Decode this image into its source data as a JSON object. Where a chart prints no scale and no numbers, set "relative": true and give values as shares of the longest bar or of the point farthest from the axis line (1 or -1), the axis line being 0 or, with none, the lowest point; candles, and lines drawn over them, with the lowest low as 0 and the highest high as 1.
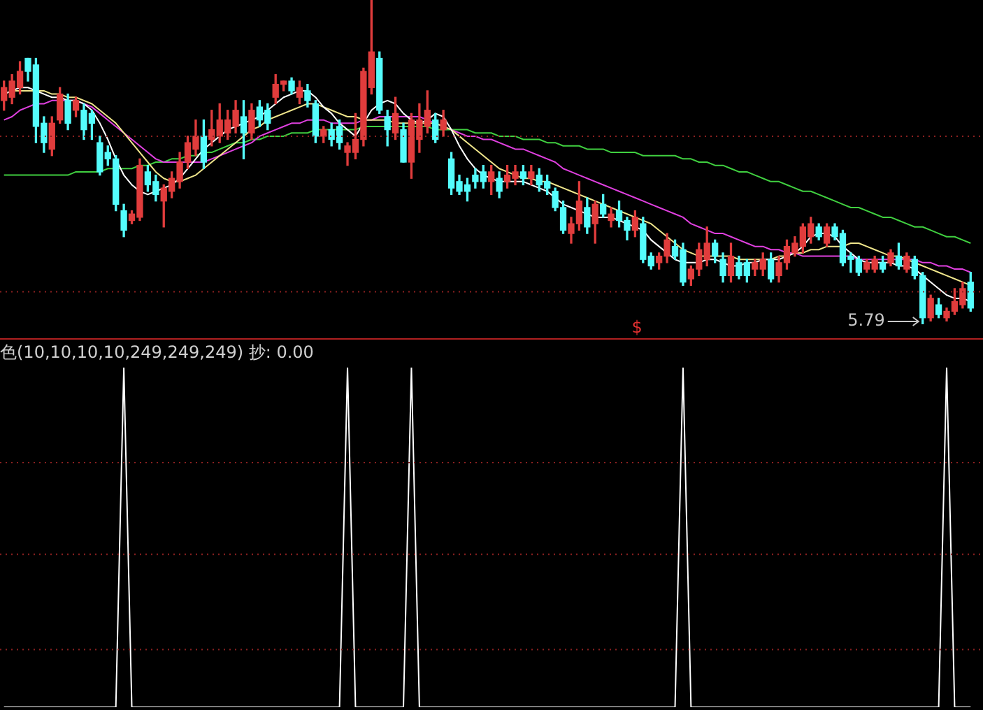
{
  "chart_data": [
    {
      "type": "candlestick",
      "relative": true,
      "categories": [
        null,
        null,
        null,
        null,
        null,
        null,
        null,
        null,
        null,
        null,
        null,
        null,
        null,
        null,
        null,
        null,
        null,
        null,
        null,
        null,
        null,
        null,
        null,
        null,
        null,
        null,
        null,
        null,
        null,
        null,
        null,
        null,
        null,
        null,
        null,
        null,
        null,
        null,
        null,
        null,
        null,
        null,
        null,
        null,
        null,
        null,
        null,
        null,
        null,
        null,
        null,
        null,
        null,
        null,
        null,
        null,
        null,
        null,
        null,
        null,
        null,
        null,
        null,
        null,
        null,
        null,
        null,
        null,
        null,
        null,
        null,
        null,
        null,
        null,
        null,
        null,
        null,
        null,
        null,
        null,
        null,
        null,
        null,
        null,
        null,
        null,
        null,
        null,
        null,
        null,
        null,
        null,
        null,
        null,
        null,
        null,
        null,
        null,
        null,
        null,
        null,
        null,
        null,
        null,
        null,
        null,
        null,
        null,
        null,
        null,
        null,
        null,
        null,
        null,
        null,
        null,
        null,
        null,
        null,
        null,
        null,
        null
      ],
      "ohlc": [
        [
          0.69,
          0.75,
          0.66,
          0.73
        ],
        [
          0.7,
          0.77,
          0.68,
          0.75
        ],
        [
          0.73,
          0.81,
          0.71,
          0.78
        ],
        [
          0.82,
          0.82,
          0.75,
          0.78
        ],
        [
          0.8,
          0.82,
          0.56,
          0.61
        ],
        [
          0.62,
          0.64,
          0.53,
          0.56
        ],
        [
          0.54,
          0.64,
          0.52,
          0.62
        ],
        [
          0.63,
          0.73,
          0.62,
          0.71
        ],
        [
          0.69,
          0.71,
          0.6,
          0.62
        ],
        [
          0.66,
          0.7,
          0.64,
          0.69
        ],
        [
          0.66,
          0.68,
          0.57,
          0.6
        ],
        [
          0.65,
          0.66,
          0.57,
          0.62
        ],
        [
          0.56,
          0.58,
          0.46,
          0.47
        ],
        [
          0.53,
          0.55,
          0.49,
          0.51
        ],
        [
          0.51,
          0.52,
          0.35,
          0.37
        ],
        [
          0.35,
          0.37,
          0.27,
          0.29
        ],
        [
          0.32,
          0.35,
          0.31,
          0.34
        ],
        [
          0.33,
          0.51,
          0.32,
          0.49
        ],
        [
          0.47,
          0.49,
          0.41,
          0.43
        ],
        [
          0.44,
          0.46,
          0.38,
          0.4
        ],
        [
          0.38,
          0.43,
          0.3,
          0.42
        ],
        [
          0.41,
          0.47,
          0.39,
          0.45
        ],
        [
          0.44,
          0.53,
          0.42,
          0.5
        ],
        [
          0.5,
          0.58,
          0.48,
          0.56
        ],
        [
          0.54,
          0.63,
          0.52,
          0.58
        ],
        [
          0.58,
          0.63,
          0.48,
          0.5
        ],
        [
          0.57,
          0.66,
          0.55,
          0.6
        ],
        [
          0.58,
          0.68,
          0.56,
          0.63
        ],
        [
          0.59,
          0.66,
          0.57,
          0.63
        ],
        [
          0.61,
          0.69,
          0.59,
          0.66
        ],
        [
          0.64,
          0.69,
          0.51,
          0.59
        ],
        [
          0.59,
          0.68,
          0.57,
          0.66
        ],
        [
          0.67,
          0.69,
          0.61,
          0.63
        ],
        [
          0.66,
          0.68,
          0.6,
          0.62
        ],
        [
          0.7,
          0.77,
          0.68,
          0.74
        ],
        [
          0.74,
          0.75,
          0.72,
          0.75
        ],
        [
          0.75,
          0.76,
          0.71,
          0.72
        ],
        [
          0.7,
          0.75,
          0.68,
          0.73
        ],
        [
          0.72,
          0.74,
          0.67,
          0.69
        ],
        [
          0.68,
          0.69,
          0.56,
          0.58
        ],
        [
          0.58,
          0.61,
          0.56,
          0.6
        ],
        [
          0.6,
          0.62,
          0.55,
          0.57
        ],
        [
          0.61,
          0.63,
          0.54,
          0.56
        ],
        [
          0.53,
          0.56,
          0.49,
          0.55
        ],
        [
          0.53,
          0.65,
          0.51,
          0.57
        ],
        [
          0.57,
          0.79,
          0.55,
          0.78
        ],
        [
          0.73,
          1.0,
          0.71,
          0.84
        ],
        [
          0.82,
          0.84,
          0.65,
          0.66
        ],
        [
          0.64,
          0.66,
          0.55,
          0.6
        ],
        [
          0.59,
          0.7,
          0.57,
          0.65
        ],
        [
          0.6,
          0.62,
          0.5,
          0.5
        ],
        [
          0.5,
          0.65,
          0.45,
          0.63
        ],
        [
          0.57,
          0.68,
          0.53,
          0.63
        ],
        [
          0.61,
          0.72,
          0.59,
          0.66
        ],
        [
          0.63,
          0.65,
          0.56,
          0.57
        ],
        [
          0.6,
          0.66,
          0.58,
          0.63
        ],
        [
          0.51,
          0.53,
          0.4,
          0.42
        ],
        [
          0.44,
          0.46,
          0.4,
          0.41
        ],
        [
          0.43,
          0.45,
          0.38,
          0.41
        ],
        [
          0.46,
          0.48,
          0.42,
          0.44
        ],
        [
          0.47,
          0.49,
          0.42,
          0.44
        ],
        [
          0.44,
          0.49,
          0.4,
          0.47
        ],
        [
          0.45,
          0.47,
          0.39,
          0.41
        ],
        [
          0.44,
          0.49,
          0.42,
          0.46
        ],
        [
          0.45,
          0.49,
          0.43,
          0.47
        ],
        [
          0.47,
          0.49,
          0.43,
          0.45
        ],
        [
          0.45,
          0.49,
          0.43,
          0.47
        ],
        [
          0.46,
          0.48,
          0.41,
          0.43
        ],
        [
          0.44,
          0.46,
          0.4,
          0.42
        ],
        [
          0.41,
          0.42,
          0.35,
          0.36
        ],
        [
          0.36,
          0.38,
          0.28,
          0.29
        ],
        [
          0.28,
          0.33,
          0.25,
          0.31
        ],
        [
          0.31,
          0.44,
          0.29,
          0.38
        ],
        [
          0.36,
          0.39,
          0.28,
          0.3
        ],
        [
          0.31,
          0.38,
          0.25,
          0.37
        ],
        [
          0.37,
          0.4,
          0.33,
          0.34
        ],
        [
          0.32,
          0.36,
          0.3,
          0.34
        ],
        [
          0.35,
          0.38,
          0.3,
          0.32
        ],
        [
          0.32,
          0.33,
          0.26,
          0.29
        ],
        [
          0.29,
          0.35,
          0.27,
          0.33
        ],
        [
          0.31,
          0.33,
          0.19,
          0.2
        ],
        [
          0.21,
          0.22,
          0.17,
          0.18
        ],
        [
          0.19,
          0.22,
          0.17,
          0.21
        ],
        [
          0.21,
          0.28,
          0.19,
          0.26
        ],
        [
          0.24,
          0.26,
          0.2,
          0.21
        ],
        [
          0.23,
          0.25,
          0.12,
          0.13
        ],
        [
          0.14,
          0.18,
          0.12,
          0.17
        ],
        [
          0.17,
          0.25,
          0.15,
          0.23
        ],
        [
          0.2,
          0.3,
          0.18,
          0.25
        ],
        [
          0.25,
          0.26,
          0.19,
          0.21
        ],
        [
          0.2,
          0.22,
          0.13,
          0.15
        ],
        [
          0.15,
          0.25,
          0.13,
          0.21
        ],
        [
          0.19,
          0.21,
          0.14,
          0.15
        ],
        [
          0.19,
          0.2,
          0.13,
          0.15
        ],
        [
          0.17,
          0.2,
          0.15,
          0.19
        ],
        [
          0.17,
          0.22,
          0.15,
          0.2
        ],
        [
          0.2,
          0.22,
          0.13,
          0.14
        ],
        [
          0.15,
          0.21,
          0.13,
          0.19
        ],
        [
          0.19,
          0.26,
          0.17,
          0.24
        ],
        [
          0.22,
          0.27,
          0.21,
          0.25
        ],
        [
          0.24,
          0.31,
          0.22,
          0.3
        ],
        [
          0.27,
          0.33,
          0.25,
          0.31
        ],
        [
          0.3,
          0.31,
          0.26,
          0.27
        ],
        [
          0.25,
          0.31,
          0.24,
          0.3
        ],
        [
          0.3,
          0.31,
          0.26,
          0.27
        ],
        [
          0.28,
          0.29,
          0.18,
          0.19
        ],
        [
          0.21,
          0.22,
          0.16,
          0.2
        ],
        [
          0.2,
          0.21,
          0.15,
          0.16
        ],
        [
          0.17,
          0.2,
          0.16,
          0.19
        ],
        [
          0.17,
          0.21,
          0.16,
          0.2
        ],
        [
          0.19,
          0.21,
          0.16,
          0.17
        ],
        [
          0.19,
          0.23,
          0.18,
          0.22
        ],
        [
          0.21,
          0.25,
          0.17,
          0.18
        ],
        [
          0.17,
          0.22,
          0.16,
          0.21
        ],
        [
          0.2,
          0.21,
          0.14,
          0.15
        ],
        [
          0.15,
          0.16,
          0.0,
          0.02
        ],
        [
          0.02,
          0.09,
          0.01,
          0.08
        ],
        [
          0.06,
          0.08,
          0.02,
          0.03
        ],
        [
          0.02,
          0.05,
          0.01,
          0.04
        ],
        [
          0.04,
          0.11,
          0.03,
          0.07
        ],
        [
          0.06,
          0.13,
          0.05,
          0.11
        ],
        [
          0.13,
          0.16,
          0.04,
          0.05
        ]
      ],
      "series": [
        {
          "type": "line",
          "color": "#ffffff",
          "values": [
            0.71,
            0.72,
            0.73,
            0.73,
            0.72,
            0.71,
            0.7,
            0.7,
            0.69,
            0.69,
            0.68,
            0.66,
            0.62,
            0.57,
            0.51,
            0.46,
            0.43,
            0.41,
            0.4,
            0.41,
            0.42,
            0.43,
            0.45,
            0.48,
            0.51,
            0.54,
            0.56,
            0.58,
            0.6,
            0.61,
            0.62,
            0.63,
            0.64,
            0.66,
            0.68,
            0.7,
            0.71,
            0.72,
            0.72,
            0.7,
            0.67,
            0.65,
            0.62,
            0.6,
            0.58,
            0.62,
            0.66,
            0.68,
            0.69,
            0.68,
            0.65,
            0.63,
            0.62,
            0.63,
            0.65,
            0.64,
            0.6,
            0.55,
            0.51,
            0.48,
            0.46,
            0.45,
            0.44,
            0.44,
            0.44,
            0.44,
            0.43,
            0.42,
            0.41,
            0.39,
            0.37,
            0.36,
            0.35,
            0.34,
            0.33,
            0.33,
            0.33,
            0.32,
            0.31,
            0.3,
            0.29,
            0.26,
            0.24,
            0.22,
            0.2,
            0.19,
            0.19,
            0.19,
            0.2,
            0.2,
            0.19,
            0.18,
            0.18,
            0.19,
            0.19,
            0.2,
            0.2,
            0.2,
            0.21,
            0.22,
            0.24,
            0.27,
            0.28,
            0.28,
            0.27,
            0.24,
            0.22,
            0.2,
            0.19,
            0.19,
            0.19,
            0.19,
            0.18,
            0.18,
            0.17,
            0.15,
            0.13,
            0.11,
            0.09,
            0.08,
            0.08,
            0.07
          ]
        },
        {
          "type": "line",
          "color": "#f0e68c",
          "values": [
            0.71,
            0.72,
            0.72,
            0.72,
            0.72,
            0.72,
            0.71,
            0.71,
            0.7,
            0.7,
            0.69,
            0.68,
            0.66,
            0.64,
            0.62,
            0.59,
            0.56,
            0.53,
            0.5,
            0.47,
            0.45,
            0.44,
            0.44,
            0.45,
            0.46,
            0.48,
            0.5,
            0.52,
            0.54,
            0.56,
            0.58,
            0.6,
            0.61,
            0.63,
            0.64,
            0.65,
            0.66,
            0.67,
            0.68,
            0.68,
            0.67,
            0.66,
            0.65,
            0.64,
            0.64,
            0.63,
            0.63,
            0.63,
            0.63,
            0.62,
            0.62,
            0.62,
            0.62,
            0.62,
            0.62,
            0.61,
            0.6,
            0.58,
            0.56,
            0.54,
            0.52,
            0.5,
            0.48,
            0.47,
            0.46,
            0.45,
            0.45,
            0.44,
            0.44,
            0.43,
            0.42,
            0.41,
            0.4,
            0.39,
            0.38,
            0.37,
            0.36,
            0.35,
            0.34,
            0.33,
            0.32,
            0.31,
            0.29,
            0.27,
            0.25,
            0.23,
            0.22,
            0.21,
            0.21,
            0.21,
            0.21,
            0.21,
            0.2,
            0.2,
            0.2,
            0.2,
            0.2,
            0.21,
            0.21,
            0.22,
            0.22,
            0.23,
            0.23,
            0.24,
            0.24,
            0.24,
            0.25,
            0.25,
            0.24,
            0.23,
            0.22,
            0.21,
            0.21,
            0.2,
            0.19,
            0.18,
            0.17,
            0.16,
            0.15,
            0.14,
            0.13,
            0.12
          ]
        },
        {
          "type": "line",
          "color": "#e040e0",
          "values": [
            0.63,
            0.64,
            0.66,
            0.67,
            0.68,
            0.68,
            0.69,
            0.69,
            0.69,
            0.69,
            0.68,
            0.67,
            0.65,
            0.63,
            0.61,
            0.59,
            0.57,
            0.55,
            0.53,
            0.51,
            0.5,
            0.5,
            0.5,
            0.5,
            0.5,
            0.5,
            0.51,
            0.52,
            0.53,
            0.54,
            0.55,
            0.56,
            0.58,
            0.59,
            0.6,
            0.61,
            0.62,
            0.62,
            0.63,
            0.63,
            0.63,
            0.62,
            0.62,
            0.62,
            0.62,
            0.63,
            0.63,
            0.64,
            0.64,
            0.64,
            0.64,
            0.64,
            0.64,
            0.63,
            0.62,
            0.61,
            0.6,
            0.59,
            0.58,
            0.58,
            0.57,
            0.57,
            0.56,
            0.55,
            0.54,
            0.54,
            0.53,
            0.52,
            0.51,
            0.5,
            0.48,
            0.47,
            0.46,
            0.45,
            0.44,
            0.43,
            0.42,
            0.41,
            0.4,
            0.39,
            0.38,
            0.37,
            0.36,
            0.35,
            0.34,
            0.33,
            0.31,
            0.3,
            0.29,
            0.28,
            0.28,
            0.27,
            0.26,
            0.25,
            0.24,
            0.24,
            0.23,
            0.23,
            0.22,
            0.22,
            0.21,
            0.21,
            0.21,
            0.21,
            0.21,
            0.21,
            0.21,
            0.2,
            0.2,
            0.2,
            0.2,
            0.2,
            0.2,
            0.2,
            0.2,
            0.19,
            0.19,
            0.18,
            0.18,
            0.17,
            0.17,
            0.16
          ]
        },
        {
          "type": "line",
          "color": "#40d040",
          "values": [
            0.46,
            0.46,
            0.46,
            0.46,
            0.46,
            0.46,
            0.46,
            0.46,
            0.46,
            0.47,
            0.47,
            0.47,
            0.47,
            0.48,
            0.48,
            0.48,
            0.48,
            0.49,
            0.49,
            0.5,
            0.5,
            0.51,
            0.51,
            0.52,
            0.52,
            0.53,
            0.53,
            0.54,
            0.55,
            0.56,
            0.56,
            0.57,
            0.57,
            0.58,
            0.58,
            0.58,
            0.59,
            0.59,
            0.59,
            0.6,
            0.6,
            0.6,
            0.6,
            0.6,
            0.6,
            0.61,
            0.61,
            0.61,
            0.61,
            0.61,
            0.61,
            0.61,
            0.61,
            0.61,
            0.6,
            0.6,
            0.6,
            0.6,
            0.6,
            0.59,
            0.59,
            0.59,
            0.58,
            0.58,
            0.58,
            0.57,
            0.57,
            0.57,
            0.56,
            0.56,
            0.55,
            0.55,
            0.55,
            0.54,
            0.54,
            0.54,
            0.53,
            0.53,
            0.53,
            0.53,
            0.52,
            0.52,
            0.52,
            0.52,
            0.52,
            0.51,
            0.51,
            0.5,
            0.5,
            0.49,
            0.49,
            0.48,
            0.47,
            0.47,
            0.46,
            0.45,
            0.44,
            0.44,
            0.43,
            0.42,
            0.41,
            0.41,
            0.4,
            0.39,
            0.38,
            0.37,
            0.36,
            0.36,
            0.35,
            0.34,
            0.33,
            0.33,
            0.32,
            0.31,
            0.3,
            0.3,
            0.29,
            0.28,
            0.27,
            0.27,
            0.26,
            0.25
          ]
        }
      ],
      "ref_lines": [
        {
          "axis": "y",
          "value": 0.58,
          "color": "#8b2020",
          "line_style": "dotted"
        },
        {
          "axis": "y",
          "value": 0.1,
          "color": "#8b2020",
          "line_style": "dotted"
        }
      ],
      "annotations": [
        "5.79",
        "$"
      ]
    },
    {
      "type": "line",
      "relative": true,
      "title": "色(10,10,10,10,249,249,249) 抄: 0.00",
      "categories": [
        null,
        null,
        null,
        null,
        null,
        null,
        null,
        null,
        null,
        null,
        null,
        null,
        null,
        null,
        null,
        null,
        null,
        null,
        null,
        null,
        null,
        null,
        null,
        null,
        null,
        null,
        null,
        null,
        null,
        null,
        null,
        null,
        null,
        null,
        null,
        null,
        null,
        null,
        null,
        null,
        null,
        null,
        null,
        null,
        null,
        null,
        null,
        null,
        null,
        null,
        null,
        null,
        null,
        null,
        null,
        null,
        null,
        null,
        null,
        null,
        null,
        null,
        null,
        null,
        null,
        null,
        null,
        null,
        null,
        null,
        null,
        null,
        null,
        null,
        null,
        null,
        null,
        null,
        null,
        null,
        null,
        null,
        null,
        null,
        null,
        null,
        null,
        null,
        null,
        null,
        null,
        null,
        null,
        null,
        null,
        null,
        null,
        null,
        null,
        null,
        null,
        null,
        null,
        null,
        null,
        null,
        null,
        null,
        null,
        null,
        null,
        null,
        null,
        null,
        null,
        null,
        null,
        null,
        null,
        null,
        null,
        null
      ],
      "series": [
        {
          "color": "#ffffff",
          "values": [
            0,
            0,
            0,
            0,
            0,
            0,
            0,
            0,
            0,
            0,
            0,
            0,
            0,
            0,
            0,
            1,
            0,
            0,
            0,
            0,
            0,
            0,
            0,
            0,
            0,
            0,
            0,
            0,
            0,
            0,
            0,
            0,
            0,
            0,
            0,
            0,
            0,
            0,
            0,
            0,
            0,
            0,
            0,
            1,
            0,
            0,
            0,
            0,
            0,
            0,
            0,
            1,
            0,
            0,
            0,
            0,
            0,
            0,
            0,
            0,
            0,
            0,
            0,
            0,
            0,
            0,
            0,
            0,
            0,
            0,
            0,
            0,
            0,
            0,
            0,
            0,
            0,
            0,
            0,
            0,
            0,
            0,
            0,
            0,
            0,
            1,
            0,
            0,
            0,
            0,
            0,
            0,
            0,
            0,
            0,
            0,
            0,
            0,
            0,
            0,
            0,
            0,
            0,
            0,
            0,
            0,
            0,
            0,
            0,
            0,
            0,
            0,
            0,
            0,
            0,
            0,
            0,
            0,
            1,
            0,
            0,
            0
          ]
        }
      ],
      "ref_lines": [
        {
          "axis": "y",
          "value": 0.72,
          "color": "#8b2020",
          "line_style": "dotted"
        },
        {
          "axis": "y",
          "value": 0.45,
          "color": "#8b2020",
          "line_style": "dotted"
        },
        {
          "axis": "y",
          "value": 0.17,
          "color": "#8b2020",
          "line_style": "dotted"
        }
      ]
    }
  ]
}
